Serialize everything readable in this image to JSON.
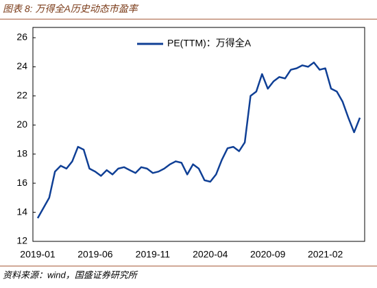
{
  "chart_data": {
    "type": "line",
    "title": "图表 8:  万得全A历史动态市盈率",
    "source": "资料来源：wind，国盛证券研究所",
    "categories": [
      "2019-01",
      null,
      null,
      null,
      null,
      null,
      null,
      null,
      null,
      null,
      "2019-06",
      null,
      null,
      null,
      null,
      null,
      null,
      null,
      null,
      null,
      "2019-11",
      null,
      null,
      null,
      null,
      null,
      null,
      null,
      null,
      null,
      "2020-04",
      null,
      null,
      null,
      null,
      null,
      null,
      null,
      null,
      null,
      "2020-09",
      null,
      null,
      null,
      null,
      null,
      null,
      null,
      null,
      null,
      "2021-02",
      null,
      null,
      null,
      null,
      null,
      null
    ],
    "series": [
      {
        "name": "PE(TTM)：万得全A",
        "color": "#0f3f95",
        "values": [
          13.6,
          14.3,
          15.0,
          16.8,
          17.2,
          17.0,
          17.5,
          18.5,
          18.3,
          17.0,
          16.8,
          16.5,
          16.9,
          16.6,
          17.0,
          17.1,
          16.9,
          16.7,
          17.1,
          17.0,
          16.7,
          16.8,
          17.0,
          17.3,
          17.5,
          17.4,
          16.6,
          17.3,
          17.0,
          16.2,
          16.1,
          16.6,
          17.6,
          18.4,
          18.5,
          18.2,
          18.8,
          22.0,
          22.3,
          23.5,
          22.5,
          23.0,
          23.3,
          23.2,
          23.8,
          23.9,
          24.1,
          24.0,
          24.3,
          23.8,
          23.9,
          22.5,
          22.3,
          21.6,
          20.5,
          19.5,
          20.5
        ]
      }
    ],
    "ylim": [
      12,
      26
    ],
    "yticks": [
      12,
      14,
      16,
      18,
      20,
      22,
      24,
      26
    ],
    "legend": "top"
  }
}
